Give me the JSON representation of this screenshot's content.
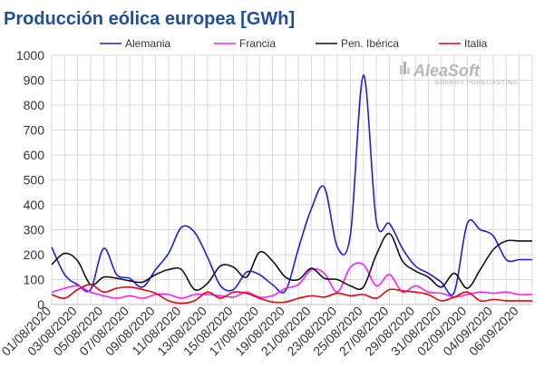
{
  "chart_data": {
    "type": "line",
    "title": "Producción eólica europea [GWh]",
    "xlabel": "",
    "ylabel": "",
    "ylim": [
      0,
      1000
    ],
    "yticks": [
      0,
      100,
      200,
      300,
      400,
      500,
      600,
      700,
      800,
      900,
      1000
    ],
    "grid": true,
    "legend_position": "top",
    "x": [
      "01/08/2020",
      "02/08/2020",
      "03/08/2020",
      "04/08/2020",
      "05/08/2020",
      "06/08/2020",
      "07/08/2020",
      "08/08/2020",
      "09/08/2020",
      "10/08/2020",
      "11/08/2020",
      "12/08/2020",
      "13/08/2020",
      "14/08/2020",
      "15/08/2020",
      "16/08/2020",
      "17/08/2020",
      "18/08/2020",
      "19/08/2020",
      "20/08/2020",
      "21/08/2020",
      "22/08/2020",
      "23/08/2020",
      "24/08/2020",
      "25/08/2020",
      "26/08/2020",
      "27/08/2020",
      "28/08/2020",
      "29/08/2020",
      "30/08/2020",
      "31/08/2020",
      "01/09/2020",
      "02/09/2020",
      "03/09/2020",
      "04/09/2020",
      "05/09/2020",
      "06/09/2020",
      "07/09/2020"
    ],
    "xtick_labels": [
      "01/08/2020",
      "03/08/2020",
      "05/08/2020",
      "07/08/2020",
      "09/08/2020",
      "11/08/2020",
      "13/08/2020",
      "15/08/2020",
      "17/08/2020",
      "19/08/2020",
      "21/08/2020",
      "23/08/2020",
      "25/08/2020",
      "27/08/2020",
      "29/08/2020",
      "31/08/2020",
      "02/09/2020",
      "04/09/2020",
      "06/09/2020"
    ],
    "series": [
      {
        "name": "Alemania",
        "color": "#1f1fd6",
        "values": [
          230,
          120,
          80,
          60,
          225,
          120,
          105,
          70,
          140,
          205,
          310,
          290,
          190,
          75,
          60,
          130,
          120,
          80,
          55,
          225,
          385,
          470,
          230,
          280,
          920,
          335,
          325,
          225,
          155,
          125,
          90,
          50,
          325,
          300,
          275,
          180,
          180,
          180
        ]
      },
      {
        "name": "Francia",
        "color": "#ff1fff",
        "values": [
          50,
          65,
          75,
          50,
          35,
          25,
          35,
          25,
          40,
          40,
          25,
          40,
          40,
          35,
          30,
          50,
          30,
          35,
          65,
          80,
          140,
          125,
          50,
          150,
          160,
          75,
          120,
          50,
          75,
          50,
          45,
          30,
          40,
          50,
          45,
          50,
          40,
          40
        ]
      },
      {
        "name": "Pen. Ibérica",
        "color": "#111111",
        "values": [
          160,
          205,
          175,
          80,
          110,
          105,
          95,
          90,
          120,
          140,
          140,
          60,
          85,
          155,
          150,
          110,
          210,
          175,
          110,
          100,
          145,
          105,
          100,
          75,
          70,
          200,
          285,
          175,
          135,
          110,
          70,
          125,
          65,
          140,
          220,
          255,
          255,
          255
        ]
      },
      {
        "name": "Italia",
        "color": "#e8000b",
        "values": [
          40,
          25,
          60,
          80,
          50,
          65,
          70,
          60,
          45,
          15,
          5,
          15,
          50,
          25,
          50,
          45,
          25,
          10,
          10,
          25,
          35,
          30,
          45,
          35,
          40,
          25,
          60,
          55,
          50,
          40,
          15,
          30,
          50,
          15,
          20,
          15,
          15,
          15
        ]
      }
    ]
  },
  "watermark": {
    "brand": "AleaSoft",
    "sub": "ENERGY FORECASTING"
  }
}
